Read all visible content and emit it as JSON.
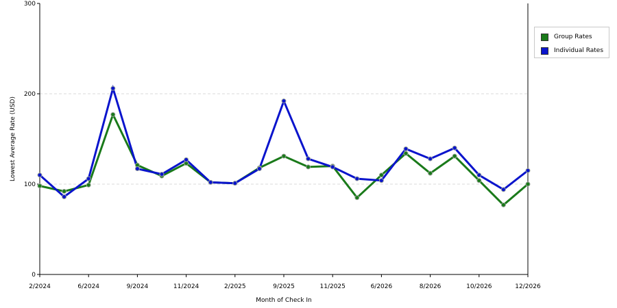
{
  "chart_data": {
    "type": "line",
    "x_ticks": [
      "2/2024",
      "6/2024",
      "9/2024",
      "11/2024",
      "2/2025",
      "9/2025",
      "11/2025",
      "6/2026",
      "8/2026",
      "10/2026",
      "12/2026"
    ],
    "xlabel": "Month of Check In",
    "ylabel": "Lowest Average Rate (USD)",
    "ylim": [
      0,
      300
    ],
    "y_ticks": [
      0,
      100,
      200,
      300
    ],
    "grid": true,
    "legend_position": "right",
    "series": [
      {
        "name": "Group Rates",
        "color": "#1a7a1a",
        "values": [
          98,
          92,
          99,
          177,
          121,
          109,
          123,
          102,
          101,
          118,
          131,
          119,
          120,
          85,
          110,
          134,
          112,
          131,
          104,
          77,
          100
        ]
      },
      {
        "name": "Individual Rates",
        "color": "#0a14cc",
        "values": [
          110,
          86,
          106,
          206,
          117,
          111,
          127,
          102,
          101,
          117,
          192,
          128,
          119,
          106,
          104,
          139,
          128,
          140,
          110,
          94,
          115
        ]
      }
    ]
  }
}
